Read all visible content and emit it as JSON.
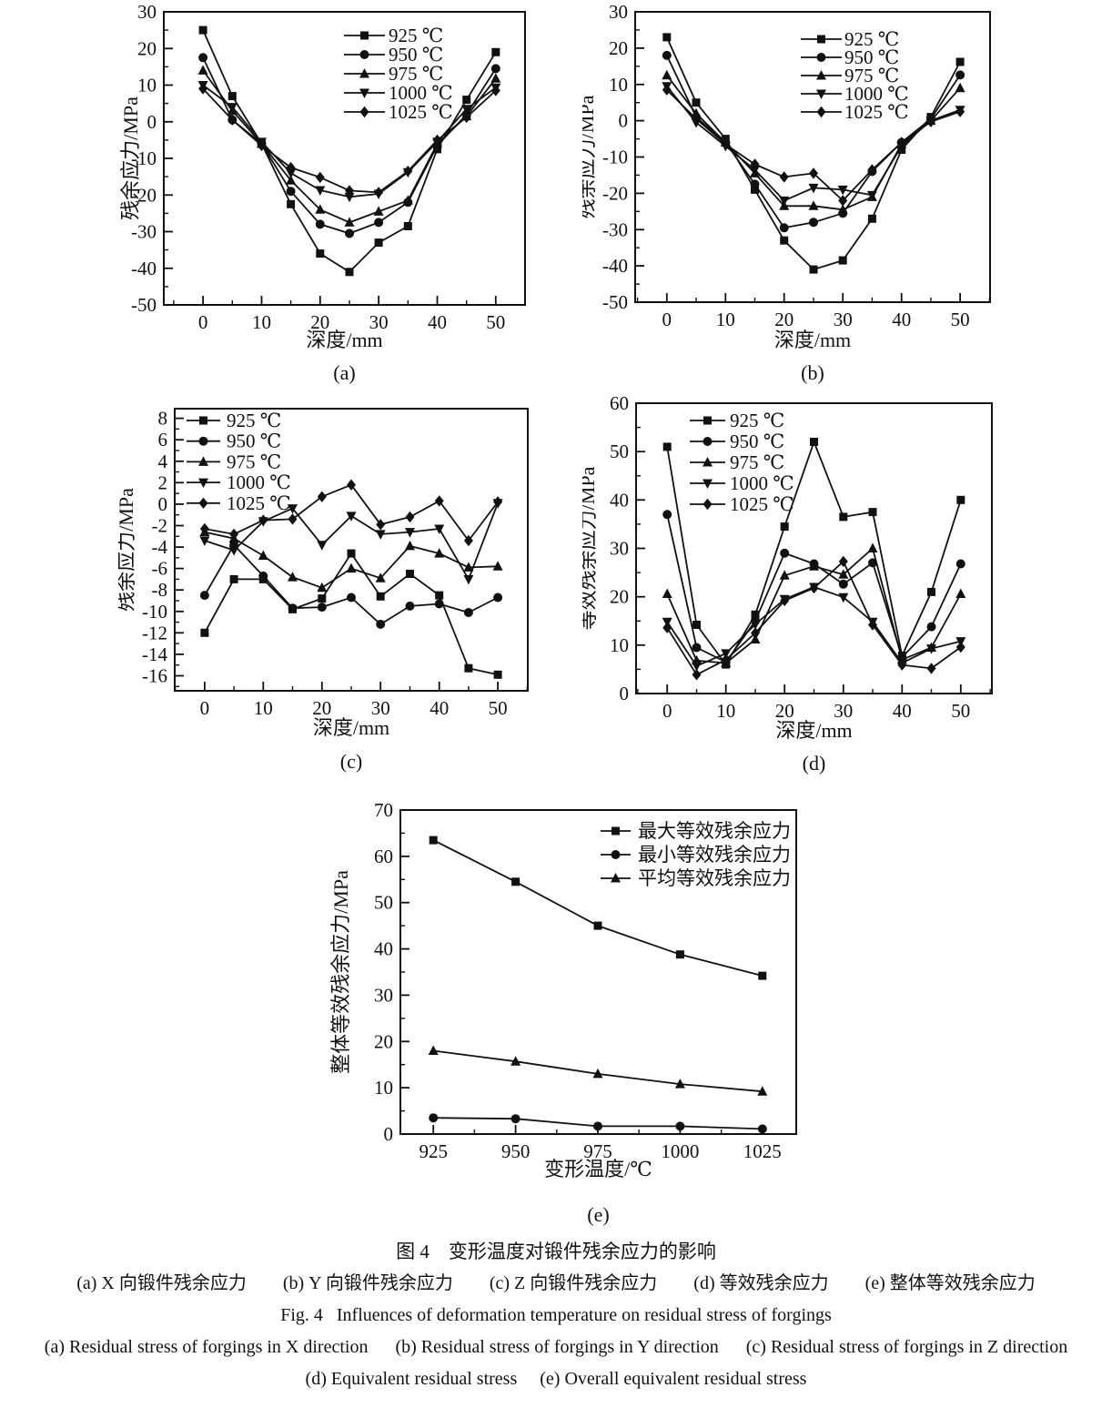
{
  "figure": {
    "ink_color": "#111111",
    "background": "#ffffff",
    "caption": {
      "title_zh": "图 4　变形温度对锻件残余应力的影响",
      "items_zh": "(a) X 向锻件残余应力　　(b) Y 向锻件残余应力　　(c) Z 向锻件残余应力　　(d) 等效残余应力　　(e) 整体等效残余应力",
      "title_en": "Fig. 4   Influences of deformation temperature on residual stress of forgings",
      "items_en_1": "(a) Residual stress of forgings in X direction      (b) Residual stress of forgings in Y direction      (c) Residual stress of forgings in Z direction",
      "items_en_2": "(d) Equivalent residual stress     (e) Overall equivalent residual stress"
    }
  },
  "chart_data": [
    {
      "id": "a",
      "type": "line",
      "tag": "(a)",
      "xlabel": "深度/mm",
      "ylabel": "残余应力/MPa",
      "xlim": [
        -6.7,
        55
      ],
      "ylim": [
        -50,
        30
      ],
      "xticks": [
        0,
        10,
        20,
        30,
        40,
        50
      ],
      "yticks": [
        -50,
        -40,
        -30,
        -20,
        -10,
        0,
        10,
        20,
        30
      ],
      "x_minor_step": 5,
      "y_minor_step": 5,
      "legend_position": "top-right",
      "grid": false,
      "x": [
        0,
        5,
        10,
        15,
        20,
        25,
        30,
        35,
        40,
        45,
        50
      ],
      "series": [
        {
          "name": "925 ℃",
          "marker": "square",
          "values": [
            25,
            7,
            -6,
            -22.5,
            -36,
            -41,
            -33,
            -28.5,
            -7.5,
            6,
            19
          ]
        },
        {
          "name": "950 ℃",
          "marker": "circle",
          "values": [
            17.5,
            0.5,
            -6,
            -19,
            -28,
            -30.5,
            -27.5,
            -22,
            -6.5,
            2,
            14.5
          ]
        },
        {
          "name": "975 ℃",
          "marker": "triangle-up",
          "values": [
            14,
            3,
            -6,
            -16,
            -24,
            -27.5,
            -24.5,
            -21.5,
            -6,
            1.5,
            11.8
          ]
        },
        {
          "name": "1000 ℃",
          "marker": "triangle-down",
          "values": [
            10,
            4,
            -5.5,
            -14,
            -18.7,
            -20.5,
            -19.7,
            -13.8,
            -5.5,
            3.5,
            9.3
          ]
        },
        {
          "name": "1025 ℃",
          "marker": "diamond",
          "values": [
            9,
            0.5,
            -6.5,
            -12.5,
            -15.2,
            -18.8,
            -19.3,
            -13.5,
            -5,
            1.2,
            8.5
          ]
        }
      ]
    },
    {
      "id": "b",
      "type": "line",
      "tag": "(b)",
      "xlabel": "深度/mm",
      "ylabel": "残余应力/MPa",
      "xlim": [
        -5.4,
        55.1
      ],
      "ylim": [
        -50,
        30
      ],
      "xticks": [
        0,
        10,
        20,
        30,
        40,
        50
      ],
      "yticks": [
        -50,
        -40,
        -30,
        -20,
        -10,
        0,
        10,
        20,
        30
      ],
      "x_minor_step": 5,
      "y_minor_step": 5,
      "legend_position": "top-right",
      "grid": false,
      "x": [
        0,
        5,
        10,
        15,
        20,
        25,
        30,
        35,
        40,
        45,
        50
      ],
      "series": [
        {
          "name": "925 ℃",
          "marker": "square",
          "values": [
            23,
            5,
            -5,
            -19,
            -33,
            -41,
            -38.5,
            -27,
            -8,
            1,
            16.2
          ]
        },
        {
          "name": "950 ℃",
          "marker": "circle",
          "values": [
            18,
            1,
            -6,
            -17.5,
            -29.5,
            -28,
            -25.5,
            -14,
            -6,
            0.5,
            12.6
          ]
        },
        {
          "name": "975 ℃",
          "marker": "triangle-up",
          "values": [
            12.5,
            2,
            -6,
            -14.5,
            -23.5,
            -23.5,
            -24.5,
            -21,
            -6.5,
            0,
            9
          ]
        },
        {
          "name": "1000 ℃",
          "marker": "triangle-down",
          "values": [
            9.5,
            -0.5,
            -7,
            -13.5,
            -22,
            -18.5,
            -19,
            -20.5,
            -7,
            0,
            3
          ]
        },
        {
          "name": "1025 ℃",
          "marker": "diamond",
          "values": [
            8.5,
            0.5,
            -6.5,
            -12,
            -15.5,
            -14.5,
            -22,
            -13.5,
            -6,
            -0.3,
            2.5
          ]
        }
      ]
    },
    {
      "id": "c",
      "type": "line",
      "tag": "(c)",
      "xlabel": "深度/mm",
      "ylabel": "残余应力/MPa",
      "xlim": [
        -5.1,
        55.1
      ],
      "ylim": [
        -17.4,
        8.9
      ],
      "xticks": [
        0,
        10,
        20,
        30,
        40,
        50
      ],
      "yticks": [
        -16,
        -14,
        -12,
        -10,
        -8,
        -6,
        -4,
        -2,
        0,
        2,
        4,
        6,
        8
      ],
      "x_minor_step": 5,
      "y_minor_step": 1,
      "legend_position": "top-left",
      "grid": false,
      "x": [
        0,
        5,
        10,
        15,
        20,
        25,
        30,
        35,
        40,
        45,
        50
      ],
      "series": [
        {
          "name": "925 ℃",
          "marker": "square",
          "values": [
            -12,
            -7,
            -7,
            -9.8,
            -8.8,
            -4.6,
            -8.6,
            -6.5,
            -8.5,
            -15.3,
            -15.9
          ]
        },
        {
          "name": "950 ℃",
          "marker": "circle",
          "values": [
            -8.5,
            -3.8,
            -6.7,
            -9.7,
            -9.6,
            -8.7,
            -11.2,
            -9.5,
            -9.3,
            -10.1,
            -8.7
          ]
        },
        {
          "name": "975 ℃",
          "marker": "triangle-up",
          "values": [
            -2.6,
            -3.2,
            -4.8,
            -6.8,
            -7.8,
            -6,
            -6.9,
            -3.9,
            -4.6,
            -5.9,
            -5.8
          ]
        },
        {
          "name": "1000 ℃",
          "marker": "triangle-down",
          "values": [
            -3.4,
            -4.3,
            -1.6,
            -0.4,
            -3.8,
            -1.1,
            -2.8,
            -2.6,
            -2.3,
            -7,
            0.1
          ]
        },
        {
          "name": "1025 ℃",
          "marker": "diamond",
          "values": [
            -2.3,
            -2.8,
            -1.5,
            -1.4,
            0.7,
            1.8,
            -1.9,
            -1.2,
            0.3,
            -3.4,
            0.2
          ]
        }
      ]
    },
    {
      "id": "d",
      "type": "line",
      "tag": "(d)",
      "xlabel": "深度/mm",
      "ylabel": "等效残余应力/MPa",
      "xlim": [
        -5.3,
        55.3
      ],
      "ylim": [
        0,
        60
      ],
      "xticks": [
        0,
        10,
        20,
        30,
        40,
        50
      ],
      "yticks": [
        0,
        10,
        20,
        30,
        40,
        50,
        60
      ],
      "x_minor_step": 5,
      "y_minor_step": 5,
      "legend_position": "top-left",
      "grid": false,
      "x": [
        0,
        5,
        10,
        15,
        20,
        25,
        30,
        35,
        40,
        45,
        50
      ],
      "series": [
        {
          "name": "925 ℃",
          "marker": "square",
          "values": [
            51,
            14.2,
            6,
            16.3,
            34.5,
            52,
            36.5,
            37.5,
            7.8,
            21,
            40
          ]
        },
        {
          "name": "950 ℃",
          "marker": "circle",
          "values": [
            37,
            9.5,
            6.5,
            15,
            29,
            26.8,
            22.6,
            27,
            7.5,
            13.8,
            26.8
          ]
        },
        {
          "name": "975 ℃",
          "marker": "triangle-up",
          "values": [
            20.6,
            6.8,
            6.3,
            11.2,
            24.4,
            26.3,
            24.6,
            30,
            7,
            9.5,
            20.6
          ]
        },
        {
          "name": "1000 ℃",
          "marker": "triangle-down",
          "values": [
            14.8,
            5.7,
            8.3,
            14.3,
            19.5,
            22,
            19.9,
            14.8,
            6.3,
            9.3,
            10.8
          ]
        },
        {
          "name": "1025 ℃",
          "marker": "diamond",
          "values": [
            13.6,
            3.9,
            7,
            12.5,
            19.2,
            21.8,
            27.3,
            14.2,
            5.9,
            5.2,
            9.6
          ]
        }
      ]
    },
    {
      "id": "e",
      "type": "line",
      "tag": "(e)",
      "xlabel": "变形温度/℃",
      "ylabel": "整体等效残余应力/MPa",
      "xlim": [
        915,
        1035.3
      ],
      "ylim": [
        0,
        70
      ],
      "xticks": [
        925,
        950,
        975,
        1000,
        1025
      ],
      "yticks": [
        0,
        10,
        20,
        30,
        40,
        50,
        60,
        70
      ],
      "x_minor_step": 12.5,
      "y_minor_step": 5,
      "legend_position": "top-right",
      "grid": false,
      "x": [
        925,
        950,
        975,
        1000,
        1025
      ],
      "series": [
        {
          "name": "最大等效残余应力",
          "marker": "square",
          "values": [
            63.5,
            54.5,
            45,
            38.8,
            34.2
          ]
        },
        {
          "name": "最小等效残余应力",
          "marker": "circle",
          "values": [
            3.5,
            3.3,
            1.7,
            1.7,
            1.1
          ]
        },
        {
          "name": "平均等效残余应力",
          "marker": "triangle-up",
          "values": [
            18,
            15.7,
            13,
            10.8,
            9.2
          ]
        }
      ]
    }
  ]
}
